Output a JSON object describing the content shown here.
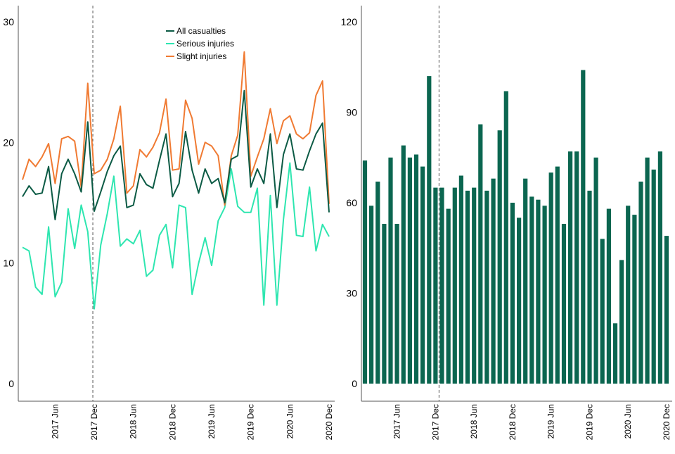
{
  "chart_data": [
    {
      "type": "line",
      "x_labels": [
        "2017 Jun",
        "2017 Dec",
        "2018 Jun",
        "2018 Dec",
        "2019 Jun",
        "2019 Dec",
        "2020 Jun",
        "2020 Dec"
      ],
      "yticks": [
        "0",
        "10",
        "20",
        "30"
      ],
      "ylim": [
        0,
        30
      ],
      "marker": "2017 Dec",
      "legend_position": "top-center",
      "series": [
        {
          "name": "All casualties",
          "color": "#0b5a44",
          "values": [
            15.5,
            16.4,
            15.7,
            15.8,
            18.0,
            13.6,
            17.4,
            18.6,
            17.4,
            15.9,
            21.7,
            14.3,
            15.9,
            17.6,
            18.9,
            19.7,
            14.6,
            14.8,
            17.4,
            16.5,
            16.2,
            18.5,
            20.7,
            15.5,
            16.6,
            20.9,
            17.7,
            15.8,
            17.8,
            16.6,
            17.0,
            15.0,
            18.6,
            18.9,
            24.3,
            16.3,
            17.8,
            16.6,
            20.7,
            14.6,
            19.0,
            20.7,
            17.8,
            17.7,
            19.3,
            20.7,
            21.6,
            14.2
          ]
        },
        {
          "name": "Serious injuries",
          "color": "#2ee6b0",
          "values": [
            11.3,
            11.0,
            8.0,
            7.4,
            13.0,
            7.2,
            8.4,
            14.5,
            11.2,
            14.8,
            12.6,
            6.2,
            11.5,
            14.1,
            17.2,
            11.4,
            12.0,
            11.6,
            12.7,
            8.9,
            9.4,
            12.3,
            13.2,
            9.6,
            14.8,
            14.6,
            7.4,
            10.0,
            12.1,
            9.8,
            13.5,
            14.6,
            17.8,
            14.7,
            14.2,
            14.2,
            16.2,
            6.5,
            15.6,
            6.5,
            13.6,
            18.3,
            12.3,
            12.2,
            16.3,
            11.0,
            13.2,
            12.2
          ]
        },
        {
          "name": "Slight injuries",
          "color": "#f07a32",
          "values": [
            16.9,
            18.6,
            18.0,
            18.8,
            19.9,
            16.6,
            20.3,
            20.5,
            20.1,
            16.3,
            24.9,
            17.4,
            17.7,
            18.6,
            20.3,
            23.0,
            15.8,
            16.4,
            19.4,
            18.8,
            19.6,
            20.8,
            23.6,
            17.7,
            17.8,
            23.5,
            22.0,
            18.2,
            20.0,
            19.7,
            18.9,
            14.8,
            18.9,
            20.6,
            27.5,
            17.2,
            18.8,
            20.3,
            22.8,
            19.9,
            21.8,
            22.2,
            20.7,
            20.3,
            20.8,
            23.9,
            25.1,
            14.9
          ]
        }
      ]
    },
    {
      "type": "bar",
      "x_labels": [
        "2017 Jun",
        "2017 Dec",
        "2018 Jun",
        "2018 Dec",
        "2019 Jun",
        "2019 Dec",
        "2020 Jun",
        "2020 Dec"
      ],
      "yticks": [
        "0",
        "30",
        "60",
        "90",
        "120"
      ],
      "ylim": [
        0,
        120
      ],
      "marker": "2017 Dec",
      "color": "#0b6650",
      "values": [
        74,
        59,
        67,
        53,
        75,
        53,
        79,
        75,
        76,
        72,
        102,
        65,
        65,
        58,
        65,
        69,
        64,
        65,
        86,
        64,
        68,
        84,
        97,
        60,
        55,
        68,
        62,
        61,
        59,
        70,
        72,
        53,
        77,
        77,
        104,
        64,
        75,
        48,
        58,
        20,
        41,
        59,
        56,
        67,
        75,
        71,
        77,
        49
      ]
    }
  ]
}
